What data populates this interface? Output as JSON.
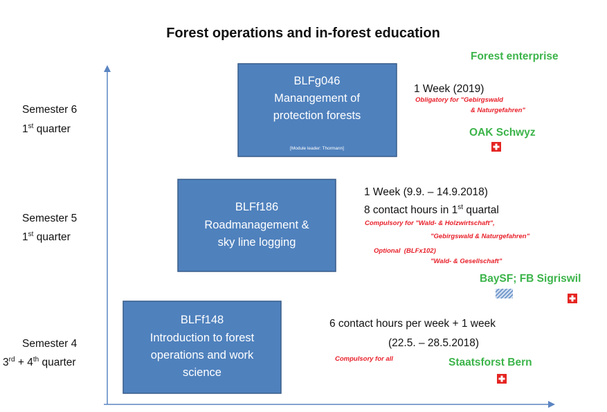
{
  "title": "Forest operations and in-forest education",
  "enterprise_heading": "Forest enterprise",
  "rows": [
    {
      "semester": "Semester 6",
      "quarter": [
        "1",
        "st",
        " quarter"
      ],
      "module": {
        "code": "BLFg046",
        "name": [
          "Manangement of",
          "protection forests"
        ],
        "note": "[Module leader:  Thormann]"
      },
      "details": [
        "1 Week  (2019)"
      ],
      "remarks": [
        "Obligatory for \"Gebirgswald",
        "& Naturgefahren\""
      ],
      "enterprise": "OAK Schwyz"
    },
    {
      "semester": "Semester 5",
      "quarter": [
        "1",
        "st",
        " quarter"
      ],
      "module": {
        "code": "BLFf186",
        "name": [
          "Roadmanagement &",
          "sky line logging"
        ]
      },
      "details": [
        "1 Week  (9.9. – 14.9.2018)",
        [
          "8 contact hours in 1",
          "st",
          " quartal"
        ]
      ],
      "remarks": [
        "Compulsory for \"Wald- & Holzwirtschaft\",",
        "\"Gebirgswald & Naturgefahren\"",
        "Optional  (BLFx102)",
        "\"Wald- & Gesellschaft\""
      ],
      "enterprise": "BaySF; FB Sigriswil"
    },
    {
      "semester": "Semester 4",
      "quarter": [
        "3",
        "rd",
        " + 4",
        "th",
        " quarter"
      ],
      "module": {
        "code": "BLFf148",
        "name": [
          "Introduction to forest",
          "operations and work",
          "science"
        ]
      },
      "details": [
        "6 contact hours per week + 1 week",
        "(22.5. – 28.5.2018)"
      ],
      "remarks": [
        "Compulsory for all"
      ],
      "enterprise": "Staatsforst Bern"
    }
  ]
}
